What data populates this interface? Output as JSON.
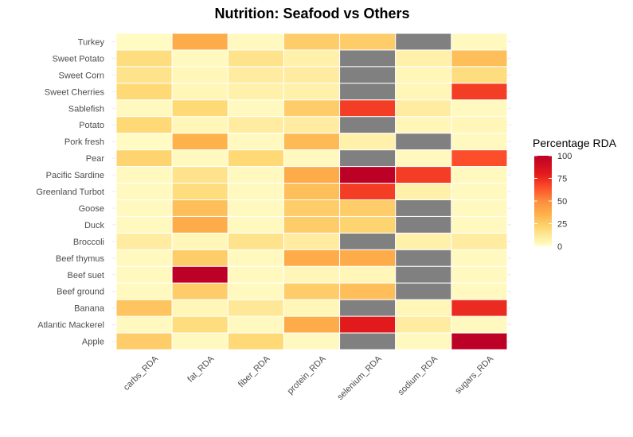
{
  "chart_data": {
    "type": "heatmap",
    "title": "Nutrition: Seafood vs Others",
    "xlabel": "",
    "ylabel": "",
    "x": [
      "carbs_RDA",
      "fat_RDA",
      "fiber_RDA",
      "protein_RDA",
      "selenium_RDA",
      "sodium_RDA",
      "sugars_RDA"
    ],
    "y": [
      "Turkey",
      "Sweet Potato",
      "Sweet Corn",
      "Sweet Cherries",
      "Sablefish",
      "Potato",
      "Pork fresh",
      "Pear",
      "Pacific Sardine",
      "Greenland Turbot",
      "Goose",
      "Duck",
      "Broccoli",
      "Beef thymus",
      "Beef suet",
      "Beef ground",
      "Banana",
      "Atlantic Mackerel",
      "Apple"
    ],
    "values": [
      [
        2,
        38,
        3,
        25,
        25,
        null,
        3
      ],
      [
        18,
        3,
        15,
        8,
        null,
        8,
        30
      ],
      [
        15,
        5,
        10,
        10,
        null,
        5,
        18
      ],
      [
        20,
        5,
        8,
        8,
        null,
        5,
        70
      ],
      [
        3,
        20,
        3,
        25,
        70,
        10,
        3
      ],
      [
        20,
        5,
        10,
        10,
        null,
        5,
        5
      ],
      [
        2,
        35,
        3,
        32,
        8,
        null,
        3
      ],
      [
        22,
        3,
        20,
        3,
        null,
        3,
        65
      ],
      [
        3,
        15,
        3,
        38,
        100,
        70,
        3
      ],
      [
        3,
        18,
        3,
        30,
        70,
        8,
        3
      ],
      [
        3,
        30,
        3,
        25,
        25,
        null,
        3
      ],
      [
        3,
        38,
        3,
        25,
        22,
        null,
        3
      ],
      [
        10,
        5,
        15,
        10,
        null,
        8,
        10
      ],
      [
        3,
        25,
        3,
        38,
        38,
        null,
        3
      ],
      [
        3,
        100,
        3,
        5,
        5,
        null,
        3
      ],
      [
        3,
        25,
        3,
        25,
        30,
        null,
        3
      ],
      [
        28,
        5,
        12,
        5,
        null,
        5,
        75
      ],
      [
        3,
        18,
        3,
        38,
        80,
        10,
        3
      ],
      [
        25,
        3,
        20,
        3,
        null,
        3,
        100
      ]
    ],
    "legend": {
      "title": "Percentage RDA",
      "ticks": [
        0,
        25,
        50,
        75,
        100
      ],
      "range": [
        0,
        100
      ],
      "placement": "right"
    },
    "na_color": "#808080",
    "colors": {
      "low": "#FFFFCC",
      "mid_low": "#FED976",
      "mid": "#FEB24C",
      "mid_high": "#FD8D3C",
      "high1": "#FC4E2A",
      "high2": "#E31A1C",
      "max": "#BD0026",
      "background": "#FFFFFF"
    },
    "grid": true
  }
}
